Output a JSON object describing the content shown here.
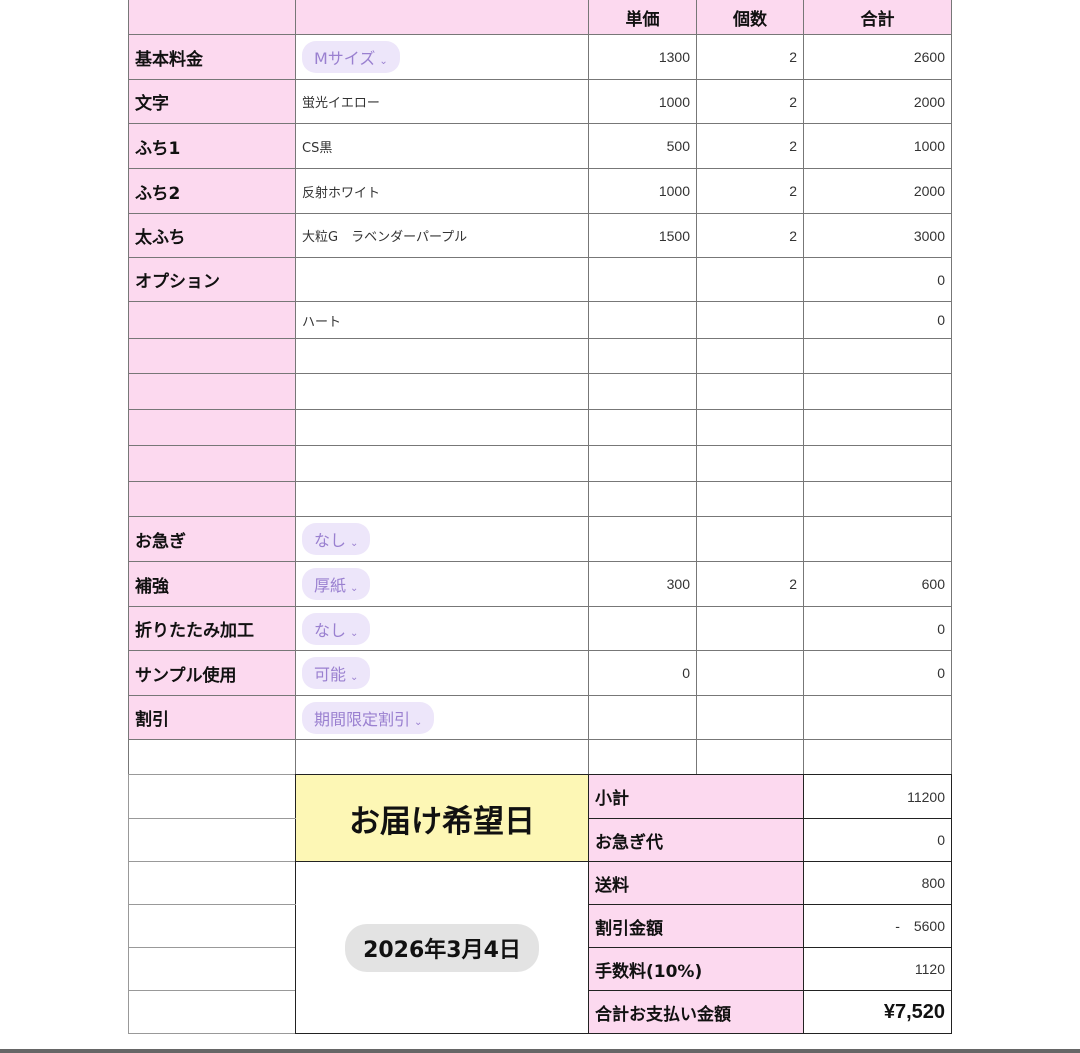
{
  "header": {
    "unit_price": "単価",
    "qty": "個数",
    "total": "合計"
  },
  "rows": [
    {
      "label": "基本料金",
      "item": "Mサイズ",
      "chip": true,
      "unit": "1300",
      "qty": "2",
      "total": "2600"
    },
    {
      "label": "文字",
      "item": "蛍光イエロー",
      "chip": false,
      "unit": "1000",
      "qty": "2",
      "total": "2000"
    },
    {
      "label": "ふち1",
      "item": "CS黒",
      "chip": false,
      "unit": "500",
      "qty": "2",
      "total": "1000"
    },
    {
      "label": "ふち2",
      "item": "反射ホワイト",
      "chip": false,
      "unit": "1000",
      "qty": "2",
      "total": "2000"
    },
    {
      "label": "太ふち",
      "item": "大粒G　ラベンダーパープル",
      "chip": false,
      "unit": "1500",
      "qty": "2",
      "total": "3000"
    },
    {
      "label": "オプション",
      "item": "",
      "chip": false,
      "unit": "",
      "qty": "",
      "total": "0"
    },
    {
      "label": "",
      "item": "ハート",
      "chip": false,
      "unit": "",
      "qty": "",
      "total": "0"
    },
    {
      "label": "",
      "item": "",
      "chip": false,
      "unit": "",
      "qty": "",
      "total": ""
    },
    {
      "label": "",
      "item": "",
      "chip": false,
      "unit": "",
      "qty": "",
      "total": ""
    },
    {
      "label": "",
      "item": "",
      "chip": false,
      "unit": "",
      "qty": "",
      "total": ""
    },
    {
      "label": "",
      "item": "",
      "chip": false,
      "unit": "",
      "qty": "",
      "total": ""
    },
    {
      "label": "",
      "item": "",
      "chip": false,
      "unit": "",
      "qty": "",
      "total": ""
    },
    {
      "label": "お急ぎ",
      "item": "なし",
      "chip": true,
      "unit": "",
      "qty": "",
      "total": ""
    },
    {
      "label": "補強",
      "item": "厚紙",
      "chip": true,
      "unit": "300",
      "qty": "2",
      "total": "600"
    },
    {
      "label": "折りたたみ加工",
      "item": "なし",
      "chip": true,
      "unit": "",
      "qty": "",
      "total": "0"
    },
    {
      "label": "サンプル使用",
      "item": "可能",
      "chip": true,
      "unit": "0",
      "qty": "",
      "total": "0"
    },
    {
      "label": "割引",
      "item": "期間限定割引",
      "chip": true,
      "unit": "",
      "qty": "",
      "total": ""
    },
    {
      "label": "",
      "item": "",
      "chip": false,
      "unit": "",
      "qty": "",
      "total": "",
      "white": true
    }
  ],
  "delivery": {
    "title": "お届け希望日",
    "date": "2026年3月4日"
  },
  "summary": [
    {
      "label": "小計",
      "value": "11200"
    },
    {
      "label": "お急ぎ代",
      "value": "0"
    },
    {
      "label": "送料",
      "value": "800"
    },
    {
      "label": "割引金額",
      "value": "-　5600"
    },
    {
      "label": "手数料(10%)",
      "value": "1120"
    },
    {
      "label": "合計お支払い金額",
      "value": "¥7,520"
    }
  ],
  "colors": {
    "label_bg": "#fcd9ef",
    "chip_bg": "#ede6fa",
    "chip_text": "#9a80d0",
    "title_bg": "#fdf7b5"
  }
}
